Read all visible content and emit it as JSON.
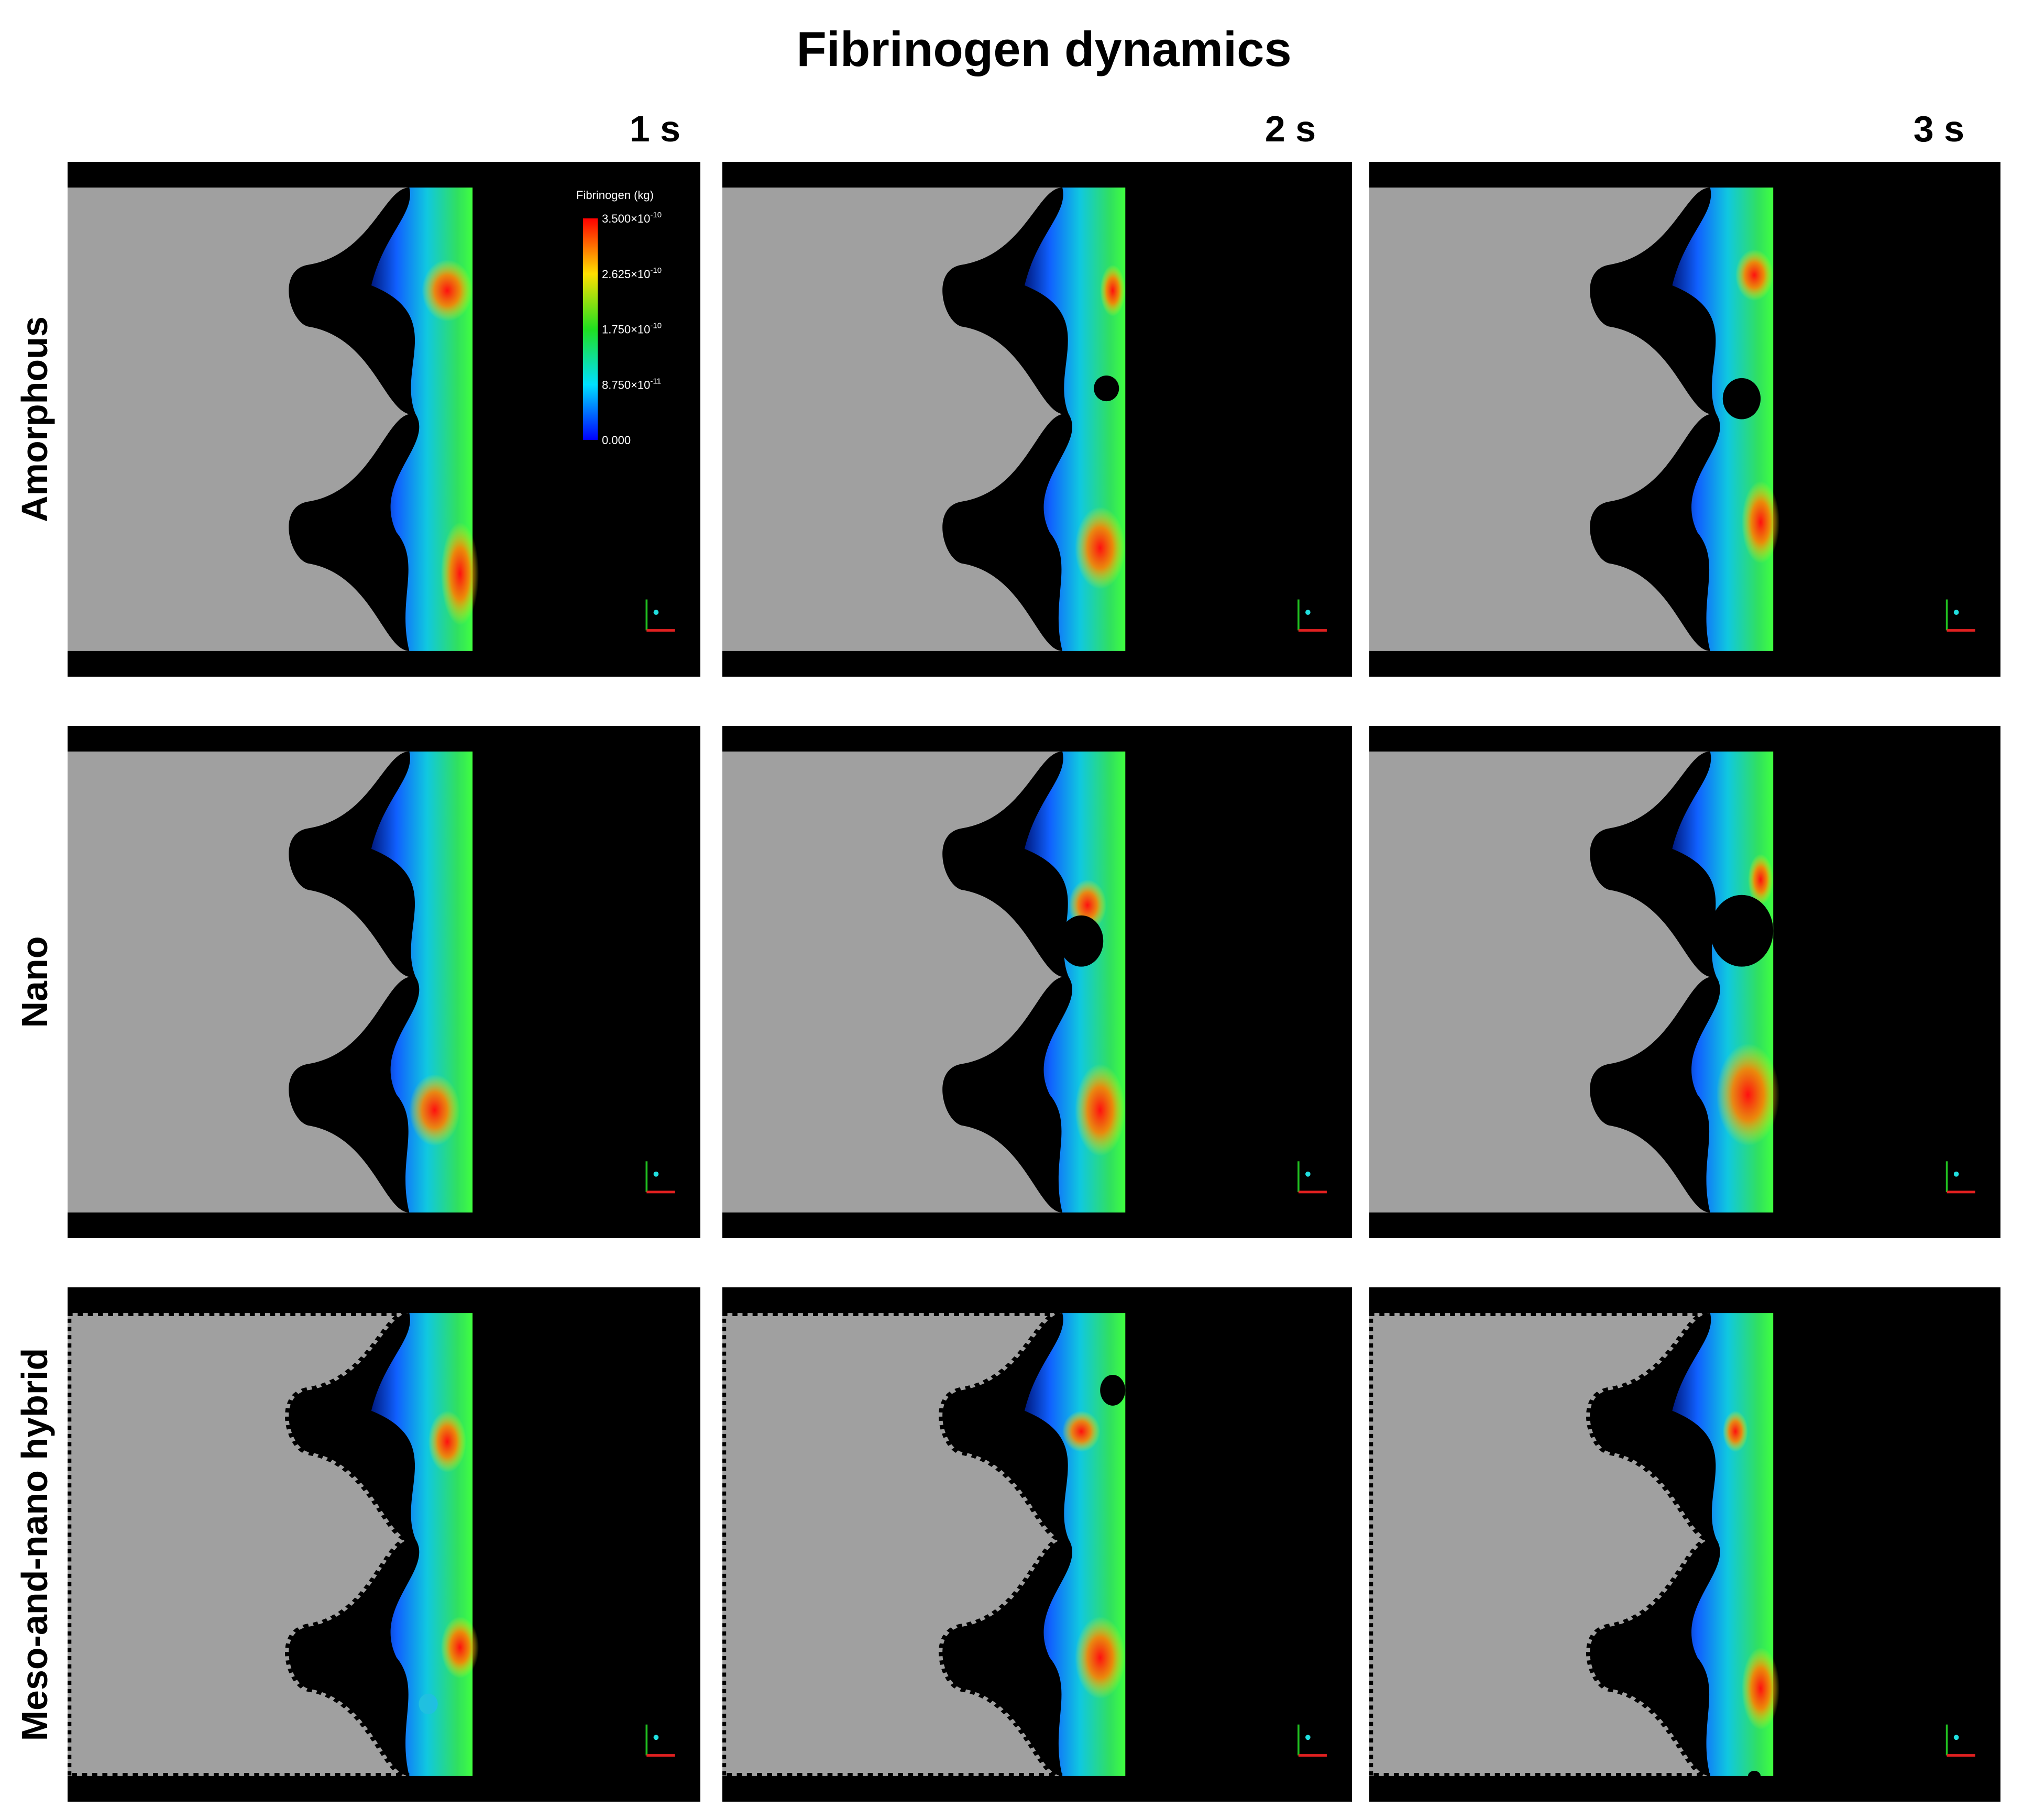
{
  "title": "Fibrinogen dynamics",
  "columns": [
    "1 s",
    "2 s",
    "3 s"
  ],
  "rows": [
    "Amorphous",
    "Nano",
    "Meso-and-nano hybrid"
  ],
  "colorbar": {
    "title": "Fibrinogen (kg)",
    "ticks": [
      {
        "mantissa": "3.500×10",
        "exponent": "-10"
      },
      {
        "mantissa": "2.625×10",
        "exponent": "-10"
      },
      {
        "mantissa": "1.750×10",
        "exponent": "-10"
      },
      {
        "mantissa": "8.750×10",
        "exponent": "-11"
      },
      {
        "mantissa": "0.000"
      }
    ]
  }
}
